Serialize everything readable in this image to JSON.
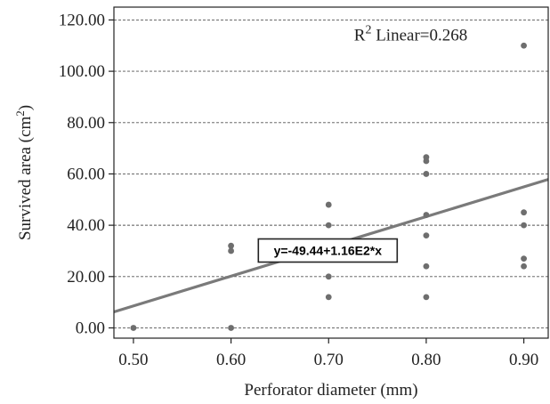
{
  "chart_data": {
    "type": "scatter",
    "title": "",
    "xlabel": "Perforator diameter (mm)",
    "ylabel": "Survived area (cm",
    "ylabel_sup": "2",
    "ylabel_close": ")",
    "xlim": [
      0.48,
      0.925
    ],
    "ylim": [
      -4,
      125
    ],
    "x_ticks": [
      0.5,
      0.6,
      0.7,
      0.8,
      0.9
    ],
    "x_tick_labels": [
      "0.50",
      "0.60",
      "0.70",
      "0.80",
      "0.90"
    ],
    "y_ticks": [
      0,
      20,
      40,
      60,
      80,
      100,
      120
    ],
    "y_tick_labels": [
      "0.00",
      "20.00",
      "40.00",
      "60.00",
      "80.00",
      "100.00",
      "120.00"
    ],
    "grid": "horizontal dashed",
    "points": [
      {
        "x": 0.5,
        "y": 0
      },
      {
        "x": 0.6,
        "y": 0
      },
      {
        "x": 0.6,
        "y": 30
      },
      {
        "x": 0.6,
        "y": 32
      },
      {
        "x": 0.7,
        "y": 12
      },
      {
        "x": 0.7,
        "y": 20
      },
      {
        "x": 0.7,
        "y": 40
      },
      {
        "x": 0.7,
        "y": 48
      },
      {
        "x": 0.8,
        "y": 12
      },
      {
        "x": 0.8,
        "y": 24
      },
      {
        "x": 0.8,
        "y": 36
      },
      {
        "x": 0.8,
        "y": 44
      },
      {
        "x": 0.8,
        "y": 60
      },
      {
        "x": 0.8,
        "y": 65
      },
      {
        "x": 0.8,
        "y": 66.5
      },
      {
        "x": 0.9,
        "y": 24
      },
      {
        "x": 0.9,
        "y": 27
      },
      {
        "x": 0.9,
        "y": 40
      },
      {
        "x": 0.9,
        "y": 45
      },
      {
        "x": 0.9,
        "y": 110
      }
    ],
    "fit_line": {
      "intercept": -49.44,
      "slope": 116
    },
    "equation_label": "y=-49.44+1.16E2*x",
    "r2_prefix": "R",
    "r2_sup": "2",
    "r2_suffix": " Linear=0.268",
    "colors": {
      "points": "#6e6e6e",
      "line": "#7a7a7a",
      "grid": "#555555",
      "axis": "#222222"
    }
  }
}
